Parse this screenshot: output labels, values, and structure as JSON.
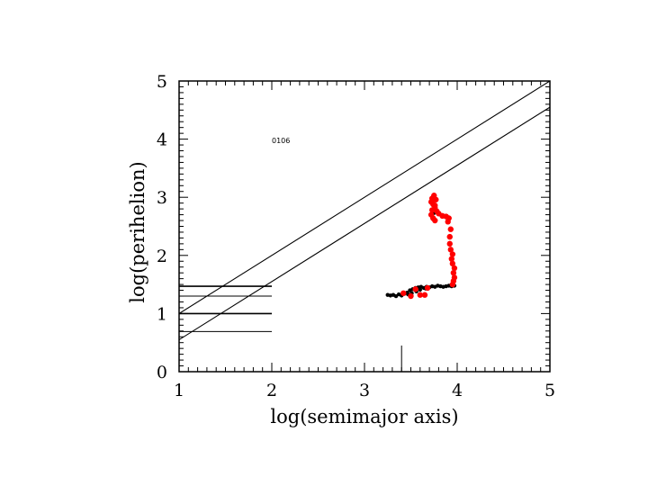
{
  "chart_data": {
    "type": "scatter",
    "title": "",
    "xlabel": "log(semimajor axis)",
    "ylabel": "log(perihelion)",
    "xlim": [
      1,
      5
    ],
    "ylim": [
      0,
      5
    ],
    "xticks": [
      "1",
      "2",
      "3",
      "4",
      "5"
    ],
    "yticks": [
      "0",
      "1",
      "2",
      "3",
      "4",
      "5"
    ],
    "grid": false,
    "annotation": "0106",
    "reference_lines": [
      {
        "x": [
          1,
          5
        ],
        "y": [
          1.0,
          5.0
        ]
      },
      {
        "x": [
          1,
          5
        ],
        "y": [
          0.55,
          4.55
        ]
      }
    ],
    "horizontal_segments": [
      {
        "y": 1.47,
        "x": [
          1,
          2
        ]
      },
      {
        "y": 1.3,
        "x": [
          1,
          2
        ]
      },
      {
        "y": 1.0,
        "x": [
          1,
          2
        ]
      },
      {
        "y": 0.69,
        "x": [
          1,
          2
        ]
      }
    ],
    "vertical_marker": {
      "x": 3.4,
      "y": [
        0,
        0.45
      ]
    },
    "series": [
      {
        "color": "#000000",
        "points": [
          [
            3.25,
            1.32
          ],
          [
            3.28,
            1.31
          ],
          [
            3.31,
            1.32
          ],
          [
            3.34,
            1.3
          ],
          [
            3.37,
            1.33
          ],
          [
            3.4,
            1.31
          ],
          [
            3.43,
            1.34
          ],
          [
            3.46,
            1.36
          ],
          [
            3.49,
            1.4
          ],
          [
            3.52,
            1.42
          ],
          [
            3.55,
            1.44
          ],
          [
            3.58,
            1.45
          ],
          [
            3.61,
            1.46
          ],
          [
            3.64,
            1.44
          ],
          [
            3.67,
            1.46
          ],
          [
            3.7,
            1.45
          ],
          [
            3.73,
            1.47
          ],
          [
            3.76,
            1.46
          ],
          [
            3.79,
            1.48
          ],
          [
            3.82,
            1.47
          ],
          [
            3.85,
            1.46
          ],
          [
            3.88,
            1.47
          ],
          [
            3.91,
            1.48
          ],
          [
            3.94,
            1.47
          ],
          [
            3.97,
            1.48
          ],
          [
            3.47,
            1.33
          ],
          [
            3.51,
            1.35
          ],
          [
            3.56,
            1.38
          ],
          [
            3.6,
            1.41
          ],
          [
            3.66,
            1.43
          ],
          [
            3.75,
            2.73
          ],
          [
            3.8,
            2.72
          ]
        ]
      },
      {
        "color": "#ff0000",
        "points": [
          [
            3.42,
            1.35
          ],
          [
            3.5,
            1.3
          ],
          [
            3.55,
            1.42
          ],
          [
            3.6,
            1.32
          ],
          [
            3.65,
            1.32
          ],
          [
            3.68,
            1.44
          ],
          [
            3.95,
            1.5
          ],
          [
            3.96,
            1.56
          ],
          [
            3.97,
            1.62
          ],
          [
            3.96,
            1.7
          ],
          [
            3.97,
            1.78
          ],
          [
            3.95,
            1.86
          ],
          [
            3.94,
            1.94
          ],
          [
            3.95,
            2.02
          ],
          [
            3.93,
            2.1
          ],
          [
            3.92,
            2.2
          ],
          [
            3.92,
            2.32
          ],
          [
            3.93,
            2.45
          ],
          [
            3.9,
            2.58
          ],
          [
            3.91,
            2.64
          ],
          [
            3.88,
            2.67
          ],
          [
            3.84,
            2.68
          ],
          [
            3.8,
            2.72
          ],
          [
            3.78,
            2.76
          ],
          [
            3.76,
            2.82
          ],
          [
            3.74,
            2.88
          ],
          [
            3.72,
            2.92
          ],
          [
            3.73,
            2.98
          ],
          [
            3.75,
            3.03
          ],
          [
            3.77,
            2.96
          ],
          [
            3.76,
            2.86
          ],
          [
            3.73,
            2.78
          ],
          [
            3.72,
            2.7
          ],
          [
            3.74,
            2.64
          ],
          [
            3.76,
            2.6
          ]
        ]
      }
    ]
  }
}
